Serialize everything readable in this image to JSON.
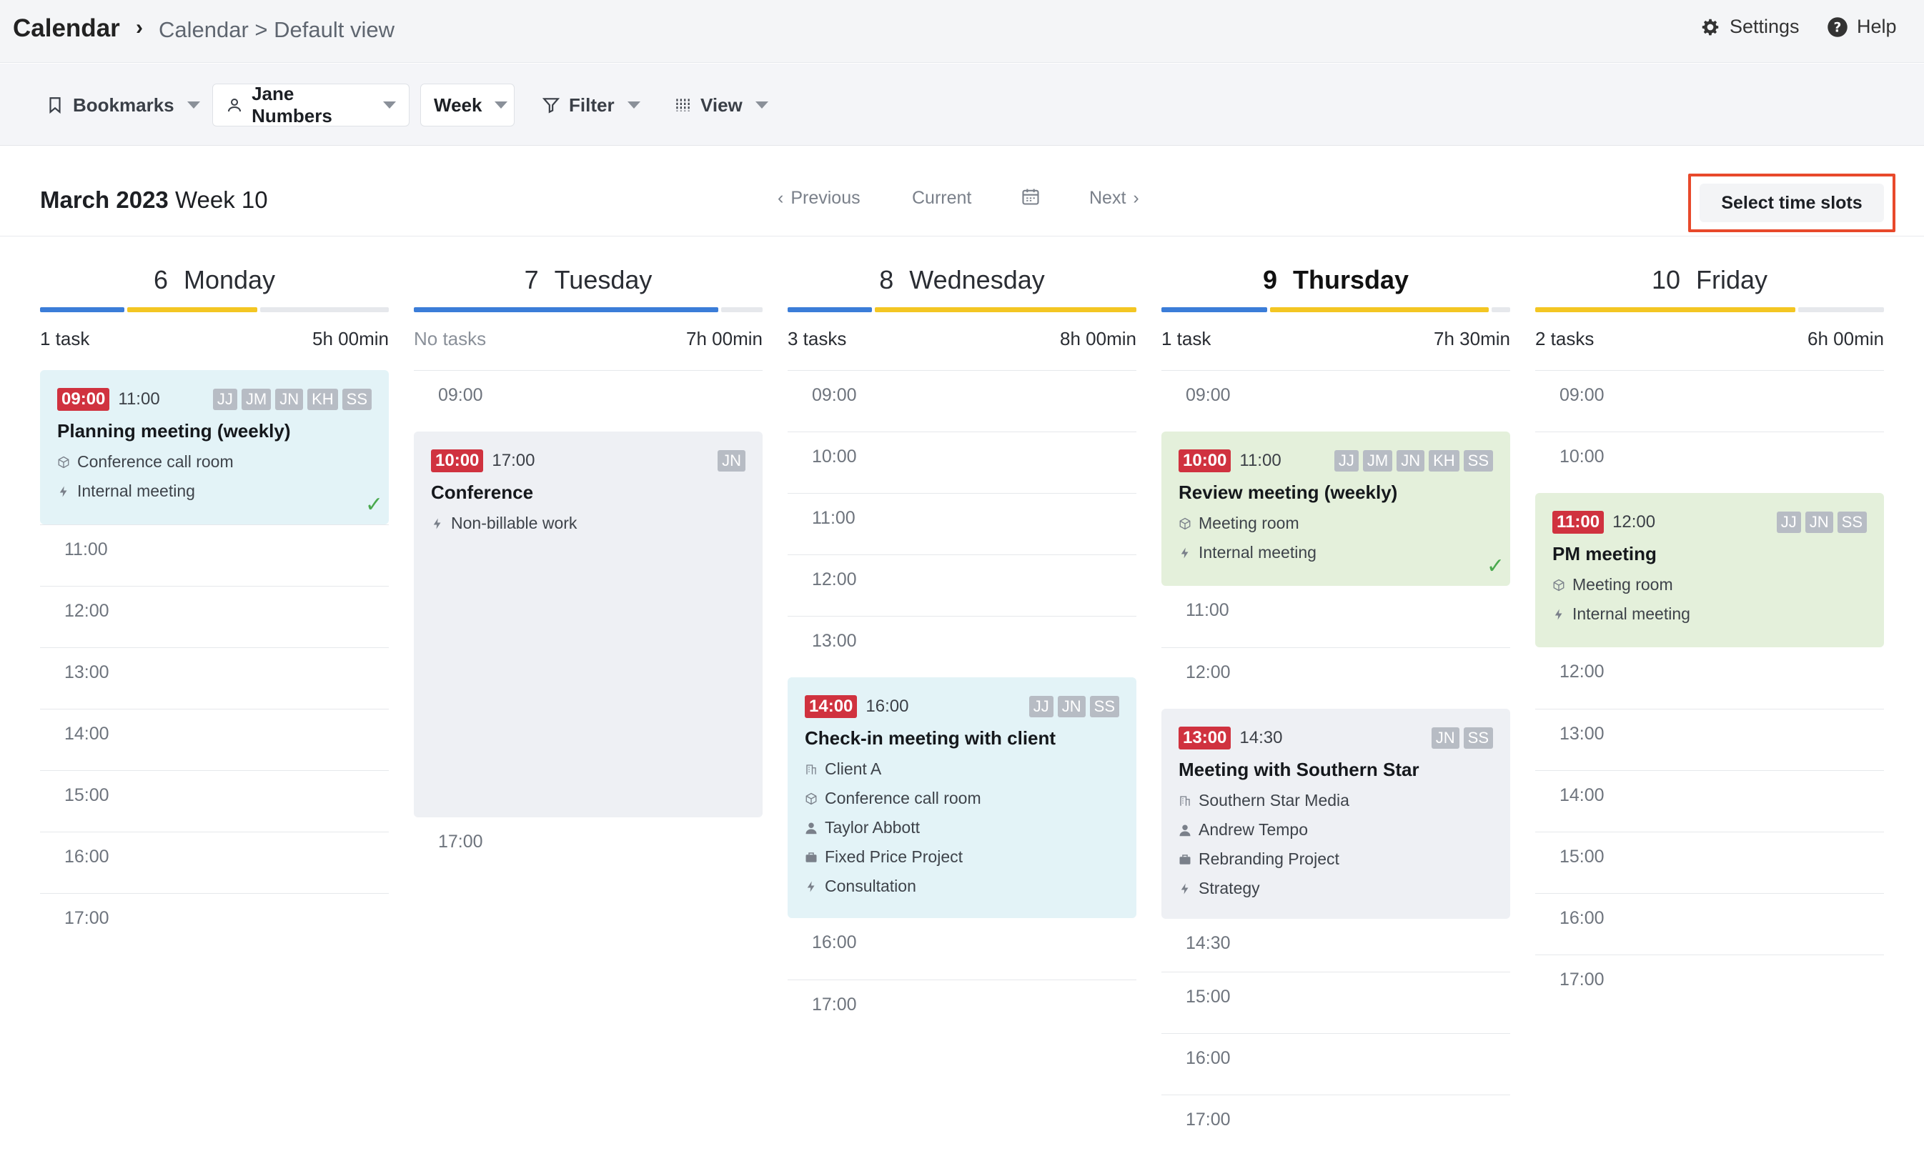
{
  "header": {
    "app_title": "Calendar",
    "breadcrumb": "Calendar > Default view",
    "settings_label": "Settings",
    "help_label": "Help"
  },
  "toolbar": {
    "bookmarks_label": "Bookmarks",
    "user_label": "Jane Numbers",
    "range_label": "Week",
    "filter_label": "Filter",
    "view_label": "View"
  },
  "nav": {
    "month": "March 2023",
    "week": "Week 10",
    "previous": "Previous",
    "current": "Current",
    "next": "Next",
    "select_slots": "Select time slots"
  },
  "colors": {
    "blue": "#3b7dd8",
    "yellow": "#f3c623",
    "gray": "#e6e8ec",
    "red_badge": "#d0323f",
    "highlight": "#e8492b"
  },
  "days": [
    {
      "num": "6",
      "name": "Monday",
      "tasks": "1 task",
      "hours": "5h 00min",
      "slots": [
        "11:00",
        "12:00",
        "13:00",
        "14:00",
        "15:00",
        "16:00",
        "17:00"
      ],
      "events": [
        {
          "start": "09:00",
          "end": "11:00",
          "title": "Planning meeting (weekly)",
          "avatars": [
            "JJ",
            "JM",
            "JN",
            "KH",
            "SS"
          ],
          "lines": [
            "Conference call room",
            "Internal meeting"
          ],
          "done": "✓"
        }
      ]
    },
    {
      "num": "7",
      "name": "Tuesday",
      "tasks": "No tasks",
      "hours": "7h 00min",
      "slots": [
        "09:00",
        "17:00"
      ],
      "events": [
        {
          "start": "10:00",
          "end": "17:00",
          "title": "Conference",
          "avatars": [
            "JN"
          ],
          "lines": [
            "Non-billable work"
          ]
        }
      ]
    },
    {
      "num": "8",
      "name": "Wednesday",
      "tasks": "3 tasks",
      "hours": "8h 00min",
      "slots": [
        "09:00",
        "10:00",
        "11:00",
        "12:00",
        "13:00",
        "16:00",
        "17:00"
      ],
      "events": [
        {
          "start": "14:00",
          "end": "16:00",
          "title": "Check-in meeting with client",
          "avatars": [
            "JJ",
            "JN",
            "SS"
          ],
          "lines": [
            "Client A",
            "Conference call room",
            "Taylor Abbott",
            "Fixed Price Project",
            "Consultation"
          ]
        }
      ]
    },
    {
      "num": "9",
      "name": "Thursday",
      "tasks": "1 task",
      "hours": "7h 30min",
      "slots": [
        "09:00",
        "11:00",
        "12:00",
        "14:30",
        "15:00",
        "16:00",
        "17:00"
      ],
      "events": [
        {
          "start": "10:00",
          "end": "11:00",
          "title": "Review meeting (weekly)",
          "avatars": [
            "JJ",
            "JM",
            "JN",
            "KH",
            "SS"
          ],
          "lines": [
            "Meeting room",
            "Internal meeting"
          ],
          "done": "✓"
        },
        {
          "start": "13:00",
          "end": "14:30",
          "title": "Meeting with Southern Star",
          "avatars": [
            "JN",
            "SS"
          ],
          "lines": [
            "Southern Star Media",
            "Andrew Tempo",
            "Rebranding Project",
            "Strategy"
          ]
        }
      ]
    },
    {
      "num": "10",
      "name": "Friday",
      "tasks": "2 tasks",
      "hours": "6h 00min",
      "slots": [
        "09:00",
        "10:00",
        "12:00",
        "13:00",
        "14:00",
        "15:00",
        "16:00",
        "17:00"
      ],
      "events": [
        {
          "start": "11:00",
          "end": "12:00",
          "title": "PM meeting",
          "avatars": [
            "JJ",
            "JN",
            "SS"
          ],
          "lines": [
            "Meeting room",
            "Internal meeting"
          ]
        }
      ]
    }
  ]
}
